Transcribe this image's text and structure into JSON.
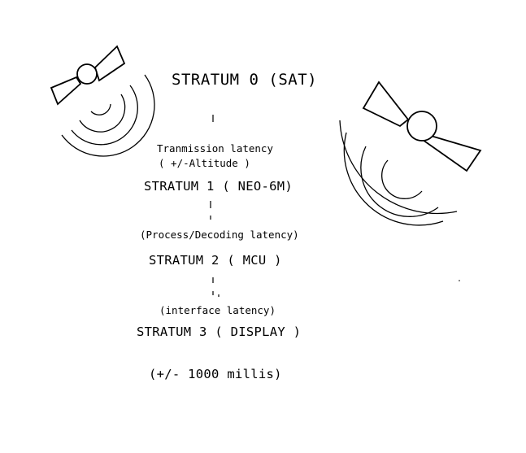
{
  "strata": {
    "s0": "STRATUM 0 (SAT)",
    "s1": "STRATUM 1 ( NEO-6M)",
    "s2": "STRATUM 2 ( MCU )",
    "s3": "STRATUM 3 ( DISPLAY )"
  },
  "latencies": {
    "transmission_line1": "Tranmission latency",
    "transmission_line2": "( +/-Altitude )",
    "process": "(Process/Decoding latency)",
    "interface": "(interface latency)"
  },
  "total": "(+/- 1000 millis)",
  "icons": [
    "satellite-icon-left",
    "satellite-icon-right"
  ]
}
